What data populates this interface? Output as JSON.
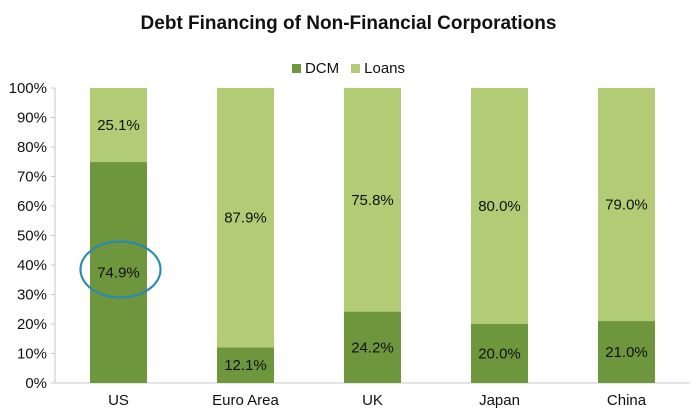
{
  "chart_data": {
    "type": "bar",
    "stacked": true,
    "title": "Debt Financing of Non-Financial Corporations",
    "categories": [
      "US",
      "Euro Area",
      "UK",
      "Japan",
      "China"
    ],
    "series": [
      {
        "name": "DCM",
        "values": [
          74.9,
          12.1,
          24.2,
          20.0,
          21.0
        ],
        "labels": [
          "74.9%",
          "12.1%",
          "24.2%",
          "20.0%",
          "21.0%"
        ],
        "color": "#6e963c"
      },
      {
        "name": "Loans",
        "values": [
          25.1,
          87.9,
          75.8,
          80.0,
          79.0
        ],
        "labels": [
          "25.1%",
          "87.9%",
          "75.8%",
          "80.0%",
          "79.0%"
        ],
        "color": "#b1cc74"
      }
    ],
    "yticks": [
      "0%",
      "10%",
      "20%",
      "30%",
      "40%",
      "50%",
      "60%",
      "70%",
      "80%",
      "90%",
      "100%"
    ],
    "ylim": [
      0,
      100
    ],
    "legend_position": "top",
    "highlight": {
      "category": "US",
      "series": "DCM",
      "shape": "ellipse",
      "color": "#2a8bb0"
    }
  }
}
